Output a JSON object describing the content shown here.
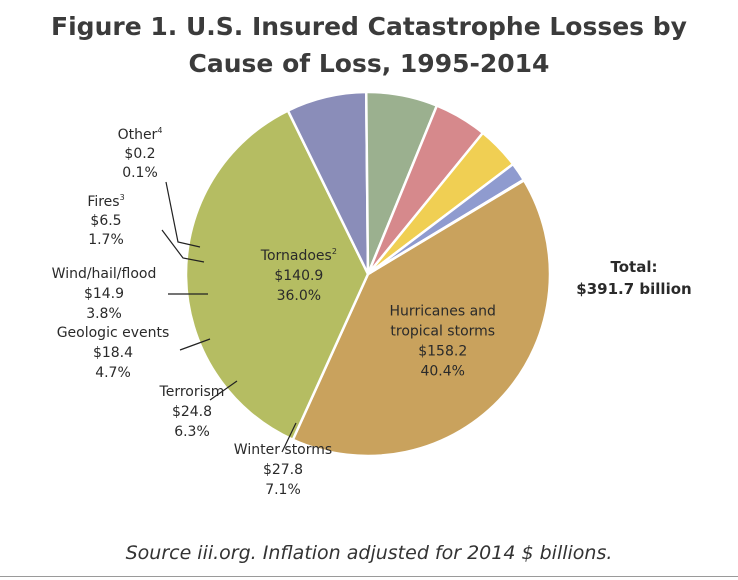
{
  "title": {
    "line1": "Figure 1. U.S. Insured Catastrophe Losses by",
    "line2": "Cause of Loss, 1995-2014"
  },
  "caption": "Source iii.org. Inflation adjusted for 2014 $ billions.",
  "chart_data": {
    "type": "pie",
    "title": "Figure 1. U.S. Insured Catastrophe Losses by Cause of Loss, 1995-2014",
    "unit": "$ billions",
    "total": {
      "line1": "Total:",
      "line2": "$391.7 billion",
      "value": 391.7
    },
    "slices": [
      {
        "label": [
          "Hurricanes and",
          "tropical storms"
        ],
        "sup": "",
        "value": 158.2,
        "value_label": "$158.2",
        "percent": 40.4,
        "percent_label": "40.4%",
        "color": "#c9a25d"
      },
      {
        "label": [
          "Tornadoes"
        ],
        "sup": "2",
        "value": 140.9,
        "value_label": "$140.9",
        "percent": 36.0,
        "percent_label": "36.0%",
        "color": "#b5bd62"
      },
      {
        "label": [
          "Winter storms"
        ],
        "sup": "",
        "value": 27.8,
        "value_label": "$27.8",
        "percent": 7.1,
        "percent_label": "7.1%",
        "color": "#8a8db9"
      },
      {
        "label": [
          "Terrorism"
        ],
        "sup": "",
        "value": 24.8,
        "value_label": "$24.8",
        "percent": 6.3,
        "percent_label": "6.3%",
        "color": "#9bb08f"
      },
      {
        "label": [
          "Geologic events"
        ],
        "sup": "",
        "value": 18.4,
        "value_label": "$18.4",
        "percent": 4.7,
        "percent_label": "4.7%",
        "color": "#d6898c"
      },
      {
        "label": [
          "Wind/hail/flood"
        ],
        "sup": "",
        "value": 14.9,
        "value_label": "$14.9",
        "percent": 3.8,
        "percent_label": "3.8%",
        "color": "#f0cf53"
      },
      {
        "label": [
          "Fires"
        ],
        "sup": "3",
        "value": 6.5,
        "value_label": "$6.5",
        "percent": 1.7,
        "percent_label": "1.7%",
        "color": "#8f9bcf"
      },
      {
        "label": [
          "Other"
        ],
        "sup": "4",
        "value": 0.2,
        "value_label": "$0.2",
        "percent": 0.1,
        "percent_label": "0.1%",
        "color": "#d9d9f0"
      }
    ]
  }
}
